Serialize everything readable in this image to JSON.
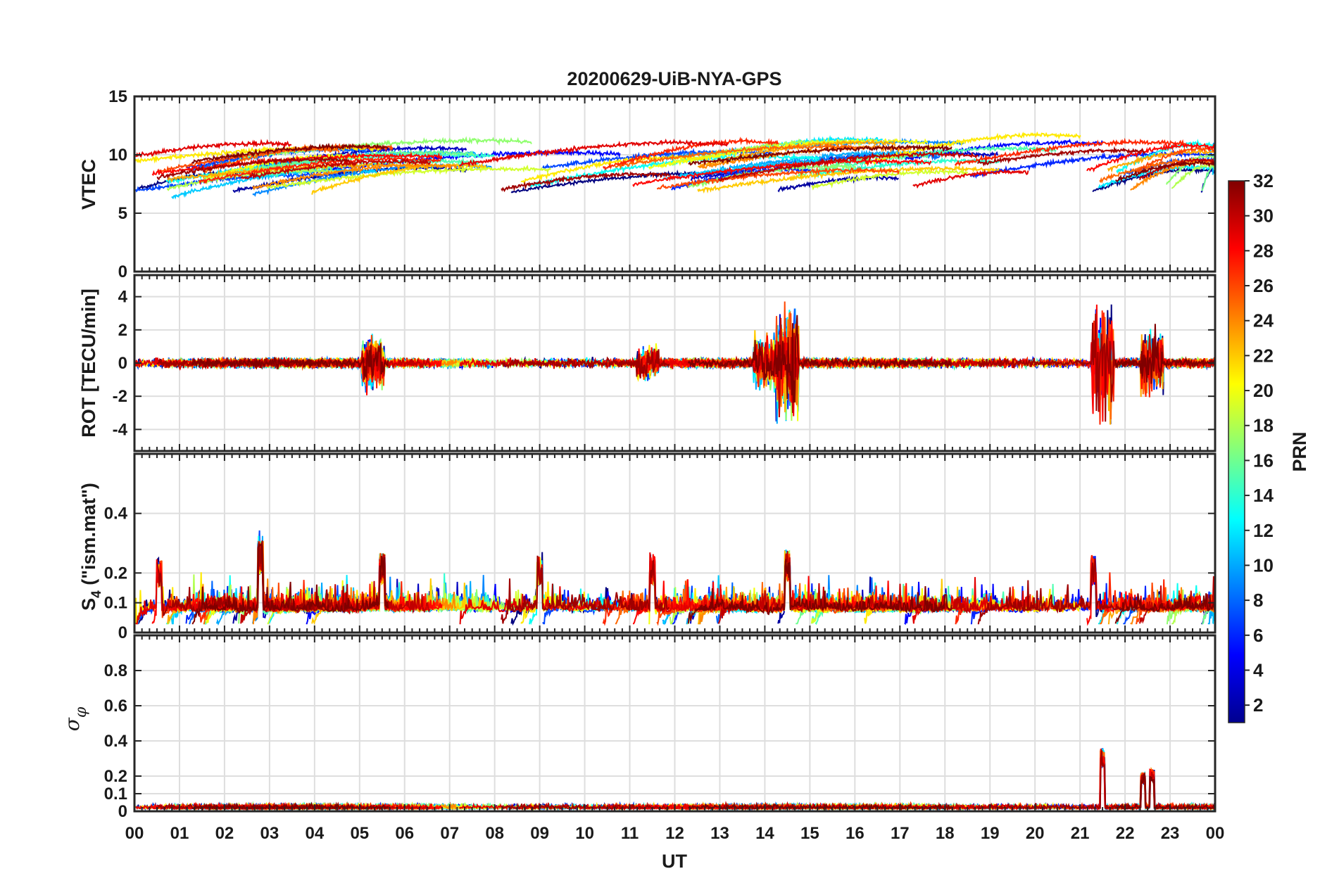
{
  "chart_data": {
    "title": "20200629-UiB-NYA-GPS",
    "xlabel": "UT",
    "x_ticks": [
      "00",
      "01",
      "02",
      "03",
      "04",
      "05",
      "06",
      "07",
      "08",
      "09",
      "10",
      "11",
      "12",
      "13",
      "14",
      "15",
      "16",
      "17",
      "18",
      "19",
      "20",
      "21",
      "22",
      "23",
      "00"
    ],
    "xlim": [
      0,
      24
    ],
    "colorbar": {
      "label": "PRN",
      "range": [
        1,
        32
      ],
      "ticks": [
        "2",
        "4",
        "6",
        "8",
        "10",
        "12",
        "14",
        "16",
        "18",
        "20",
        "22",
        "24",
        "26",
        "28",
        "30",
        "32"
      ],
      "colormap": "jet"
    },
    "panels": [
      {
        "id": "vtec",
        "type": "line",
        "ylabel": "VTEC",
        "ylim": [
          0,
          15
        ],
        "y_ticks": [
          "0",
          "5",
          "10",
          "15"
        ],
        "y_tick_values": [
          0,
          5,
          10,
          15
        ],
        "typical_range": [
          5,
          12
        ],
        "events": []
      },
      {
        "id": "rot",
        "type": "line",
        "ylabel": "ROT [TECU/min]",
        "ylim": [
          -5.3,
          5.3
        ],
        "y_ticks": [
          "-4",
          "-2",
          "0",
          "2",
          "4"
        ],
        "y_tick_values": [
          -4,
          -2,
          0,
          2,
          4
        ],
        "baseline": 0,
        "events": [
          {
            "ut": 5.3,
            "amplitude": 1.5
          },
          {
            "ut": 11.4,
            "amplitude": 1.0
          },
          {
            "ut": 14.0,
            "amplitude": 1.5
          },
          {
            "ut": 14.5,
            "amplitude": 2.9
          },
          {
            "ut": 21.5,
            "amplitude": 3.3
          },
          {
            "ut": 22.6,
            "amplitude": 1.8
          }
        ]
      },
      {
        "id": "s4",
        "type": "line",
        "ylabel": "S_4 (\"ism.mat\")",
        "ylabel_main": "S",
        "ylabel_sub": "4",
        "ylabel_rest": " (\"ism.mat\")",
        "ylim": [
          0,
          0.6
        ],
        "y_ticks": [
          "0",
          "0.1",
          "0.2",
          "0.4"
        ],
        "y_tick_values": [
          0,
          0.1,
          0.2,
          0.4
        ],
        "typical_range": [
          0.03,
          0.2
        ],
        "events": [
          {
            "ut": 0.55,
            "value": 0.25
          },
          {
            "ut": 2.8,
            "value": 0.31
          },
          {
            "ut": 5.5,
            "value": 0.27
          },
          {
            "ut": 9.0,
            "value": 0.26
          },
          {
            "ut": 11.5,
            "value": 0.27
          },
          {
            "ut": 14.5,
            "value": 0.28
          },
          {
            "ut": 21.3,
            "value": 0.26
          }
        ]
      },
      {
        "id": "sigma_phi",
        "type": "line",
        "ylabel": "σ_φ",
        "ylabel_main": "σ",
        "ylabel_sub": "φ",
        "ylim": [
          0,
          1
        ],
        "y_ticks": [
          "0",
          "0.1",
          "0.2",
          "0.4",
          "0.6",
          "0.8"
        ],
        "y_tick_values": [
          0,
          0.1,
          0.2,
          0.4,
          0.6,
          0.8
        ],
        "typical_range": [
          0.01,
          0.04
        ],
        "events": [
          {
            "ut": 21.5,
            "value": 0.36
          },
          {
            "ut": 22.4,
            "value": 0.22
          },
          {
            "ut": 22.6,
            "value": 0.24
          }
        ]
      }
    ]
  }
}
